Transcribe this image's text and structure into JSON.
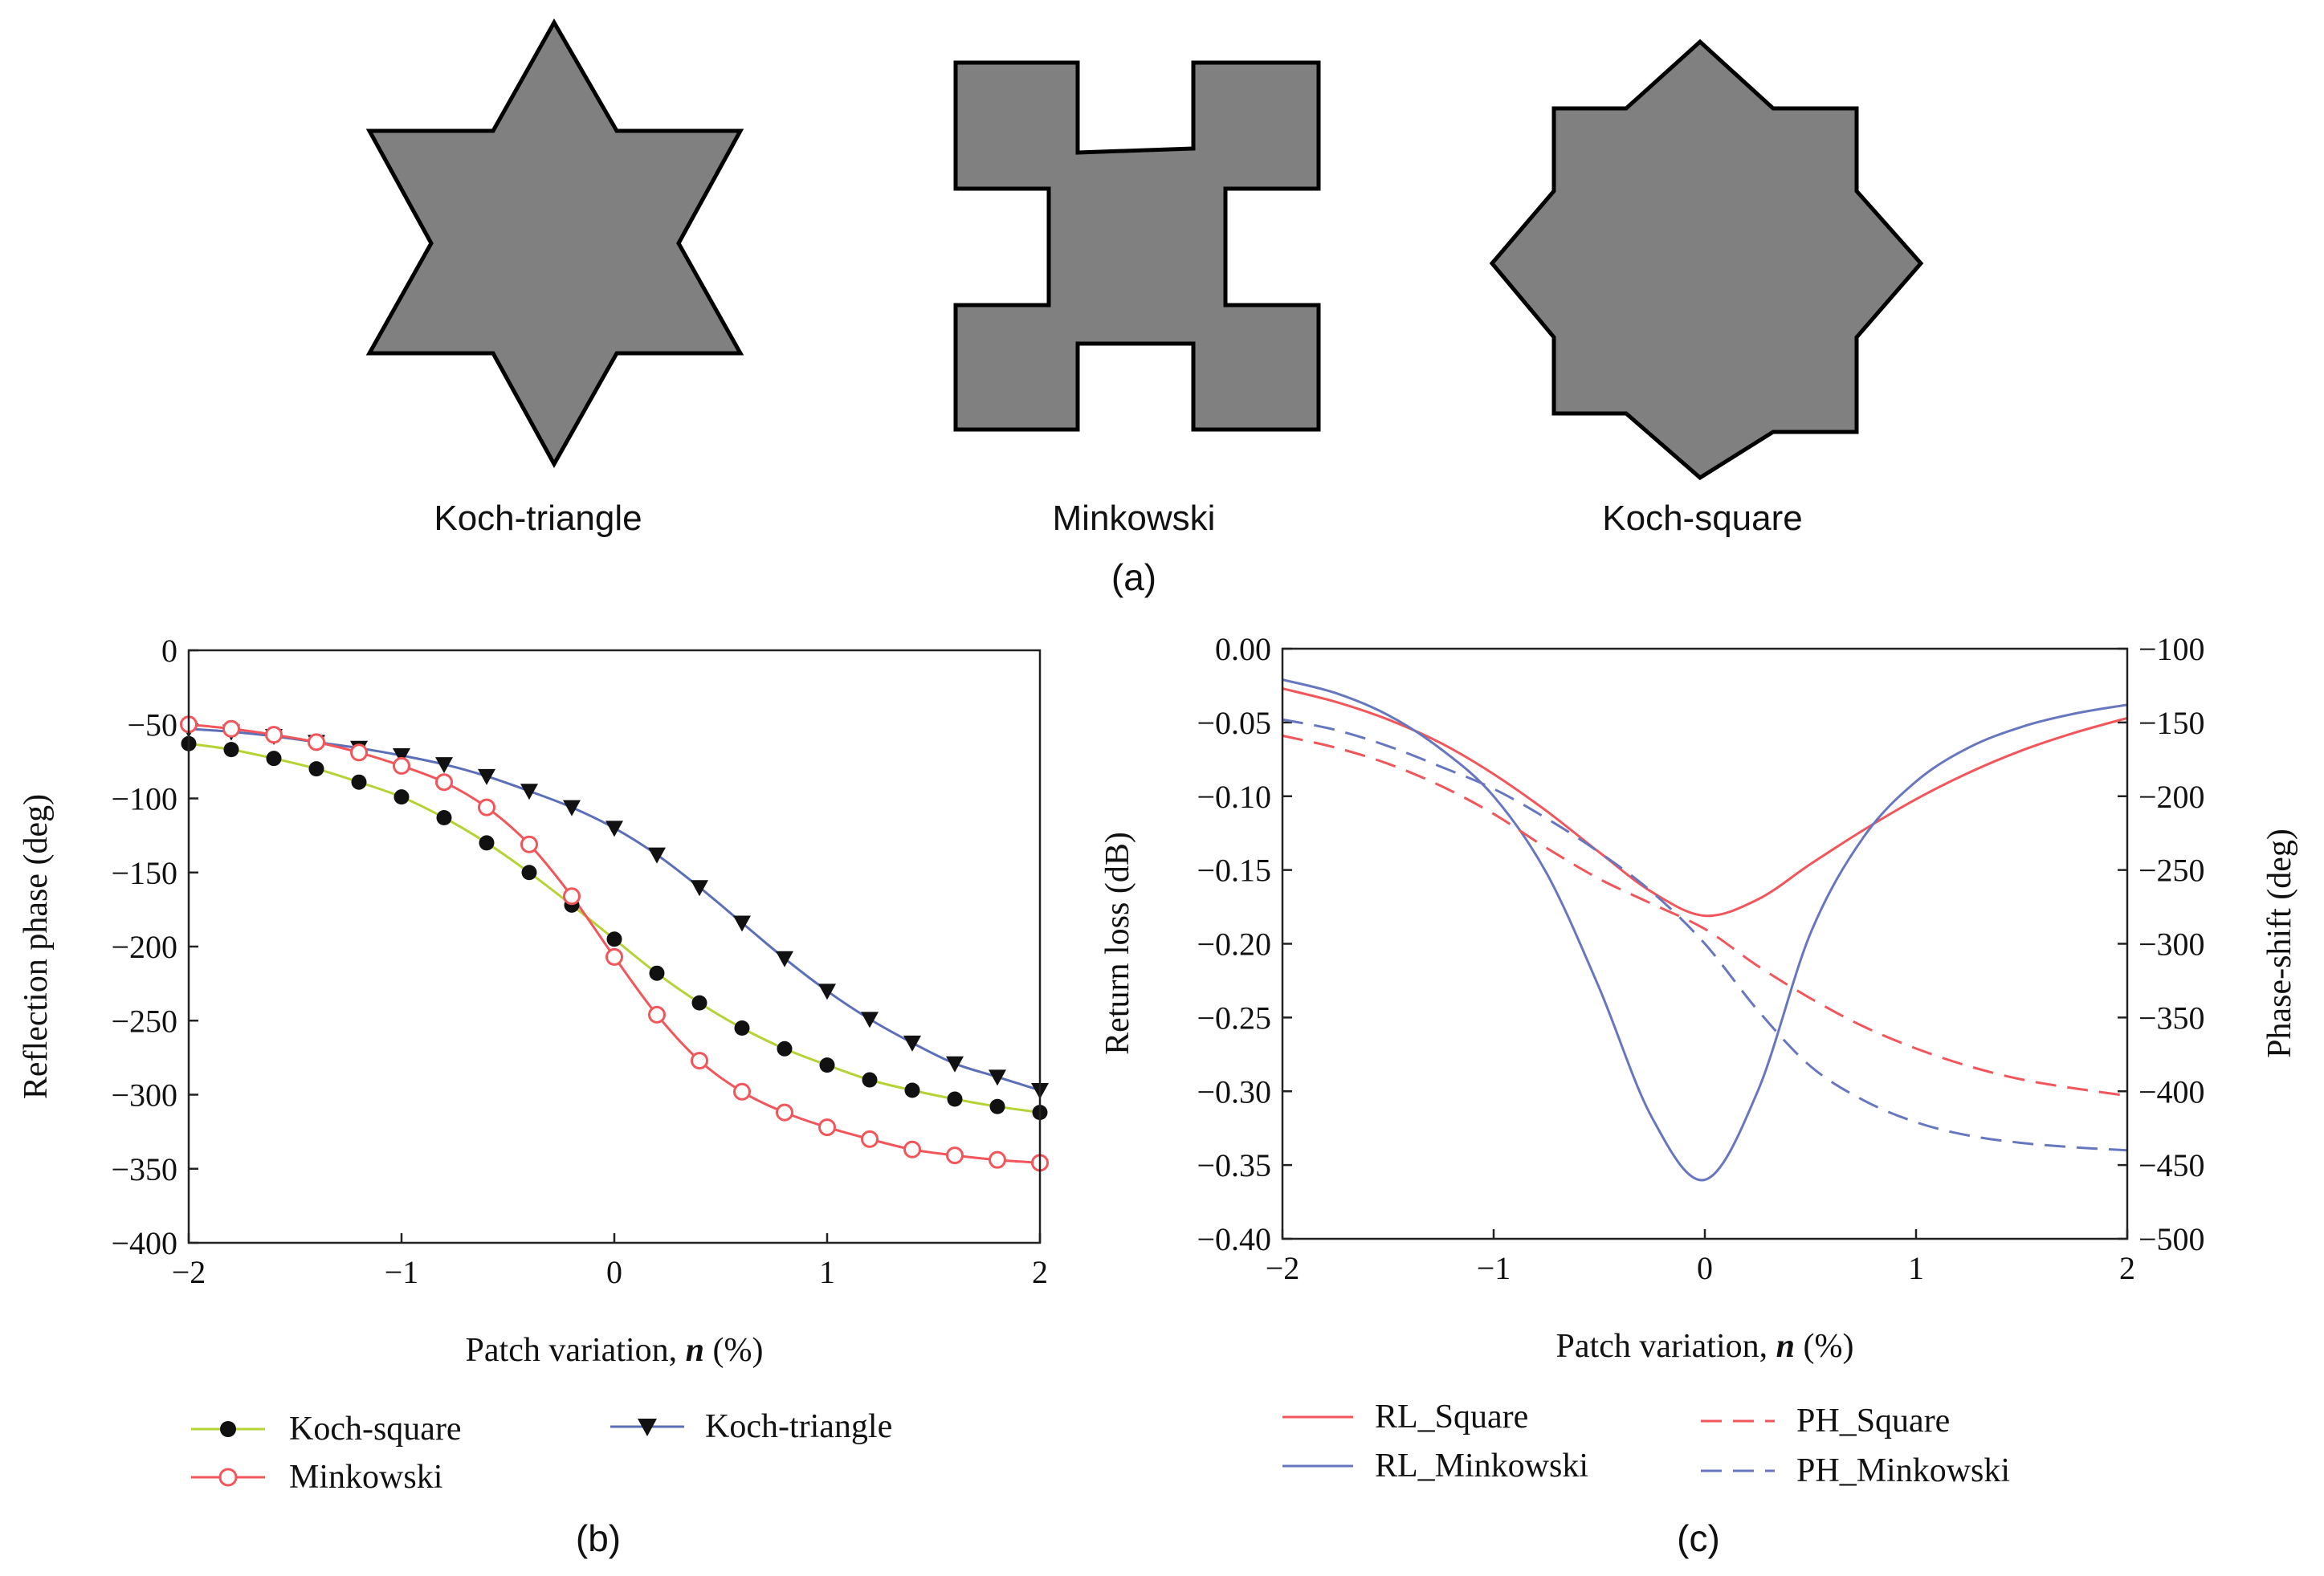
{
  "panel_a": {
    "label": "(a)",
    "shapes": [
      {
        "name": "Koch-triangle"
      },
      {
        "name": "Minkowski"
      },
      {
        "name": "Koch-square"
      }
    ],
    "fill_color": "#808080",
    "stroke_color": "#000000"
  },
  "panel_b": {
    "label": "(b)"
  },
  "panel_c": {
    "label": "(c)"
  },
  "chart_data": [
    {
      "type": "line",
      "title": "",
      "xlabel_prefix": "Patch variation, ",
      "xlabel_var": "n",
      "xlabel_suffix": " (%)",
      "ylabel": "Reflection phase (deg)",
      "xlim": [
        -2,
        2
      ],
      "ylim": [
        -400,
        0
      ],
      "xticks": [
        -2,
        -1,
        0,
        1,
        2
      ],
      "xtick_labels": [
        "−2",
        "−1",
        "0",
        "1",
        "2"
      ],
      "yticks": [
        0,
        -50,
        -100,
        -150,
        -200,
        -250,
        -300,
        -350,
        -400
      ],
      "ytick_labels": [
        "0",
        "−50",
        "−100",
        "−150",
        "−200",
        "−250",
        "−300",
        "−350",
        "−400"
      ],
      "legend_position": "bottom",
      "x": [
        -2.0,
        -1.8,
        -1.6,
        -1.4,
        -1.2,
        -1.0,
        -0.8,
        -0.6,
        -0.4,
        -0.2,
        0.0,
        0.2,
        0.4,
        0.6,
        0.8,
        1.0,
        1.2,
        1.4,
        1.6,
        1.8,
        2.0
      ],
      "series": [
        {
          "name": "Koch-square",
          "marker": "filled-circle",
          "line_color": "#b5d334",
          "marker_color": "#111111",
          "values": [
            -63,
            -67,
            -73,
            -80,
            -89,
            -99,
            -113,
            -130,
            -150,
            -172,
            -195,
            -218,
            -238,
            -255,
            -269,
            -280,
            -290,
            -297,
            -303,
            -308,
            -312
          ]
        },
        {
          "name": "Koch-triangle",
          "marker": "filled-down-triangle",
          "line_color": "#5b6fb8",
          "marker_color": "#111111",
          "values": [
            -53,
            -55,
            -58,
            -62,
            -66,
            -71,
            -77,
            -85,
            -95,
            -106,
            -120,
            -138,
            -160,
            -184,
            -208,
            -230,
            -249,
            -265,
            -279,
            -288,
            -297
          ]
        },
        {
          "name": "Minkowski",
          "marker": "open-circle",
          "line_color": "#f2555a",
          "marker_color": "#f2555a",
          "values": [
            -50,
            -53,
            -57,
            -62,
            -69,
            -78,
            -89,
            -106,
            -131,
            -166,
            -207,
            -246,
            -277,
            -298,
            -312,
            -322,
            -330,
            -337,
            -341,
            -344,
            -346
          ]
        }
      ]
    },
    {
      "type": "line",
      "title": "",
      "xlabel_prefix": "Patch variation, ",
      "xlabel_var": "n",
      "xlabel_suffix": " (%)",
      "ylabel": "Return loss (dB)",
      "ylabel_right": "Phase-shift (deg)",
      "xlim": [
        -2,
        2
      ],
      "ylim": [
        -0.4,
        0
      ],
      "ylim_right": [
        -500,
        -100
      ],
      "xticks": [
        -2,
        -1,
        0,
        1,
        2
      ],
      "xtick_labels": [
        "−2",
        "−1",
        "0",
        "1",
        "2"
      ],
      "yticks": [
        0,
        -0.05,
        -0.1,
        -0.15,
        -0.2,
        -0.25,
        -0.3,
        -0.35,
        -0.4
      ],
      "ytick_labels": [
        "0.00",
        "−0.05",
        "−0.10",
        "−0.15",
        "−0.20",
        "−0.25",
        "−0.30",
        "−0.35",
        "−0.40"
      ],
      "yticks_right": [
        -100,
        -150,
        -200,
        -250,
        -300,
        -350,
        -400,
        -450,
        -500
      ],
      "ytick_labels_right": [
        "−100",
        "−150",
        "−200",
        "−250",
        "−300",
        "−350",
        "−400",
        "−450",
        "−500"
      ],
      "legend_position": "bottom",
      "x": [
        -2.0,
        -1.75,
        -1.5,
        -1.25,
        -1.0,
        -0.75,
        -0.5,
        -0.25,
        0.0,
        0.25,
        0.5,
        0.75,
        1.0,
        1.25,
        1.5,
        1.75,
        2.0
      ],
      "series": [
        {
          "name": "RL_Square",
          "axis": "left",
          "style": "solid",
          "color": "#f2555a",
          "values": [
            -0.027,
            -0.036,
            -0.048,
            -0.064,
            -0.085,
            -0.11,
            -0.138,
            -0.165,
            -0.181,
            -0.17,
            -0.146,
            -0.123,
            -0.102,
            -0.084,
            -0.069,
            -0.057,
            -0.047
          ]
        },
        {
          "name": "RL_Minkowski",
          "axis": "left",
          "style": "solid",
          "color": "#6677c0",
          "values": [
            -0.021,
            -0.03,
            -0.045,
            -0.068,
            -0.1,
            -0.152,
            -0.23,
            -0.318,
            -0.36,
            -0.3,
            -0.193,
            -0.128,
            -0.09,
            -0.067,
            -0.053,
            -0.044,
            -0.038
          ]
        },
        {
          "name": "PH_Square",
          "axis": "right",
          "style": "dashed",
          "color": "#f2555a",
          "values": [
            -159,
            -167,
            -178,
            -193,
            -212,
            -235,
            -256,
            -273,
            -290,
            -315,
            -337,
            -356,
            -371,
            -383,
            -392,
            -398,
            -403
          ]
        },
        {
          "name": "PH_Minkowski",
          "axis": "right",
          "style": "dashed",
          "color": "#6677c0",
          "values": [
            -148,
            -155,
            -166,
            -180,
            -195,
            -215,
            -238,
            -265,
            -300,
            -345,
            -383,
            -406,
            -421,
            -430,
            -435,
            -438,
            -440
          ]
        }
      ]
    }
  ]
}
